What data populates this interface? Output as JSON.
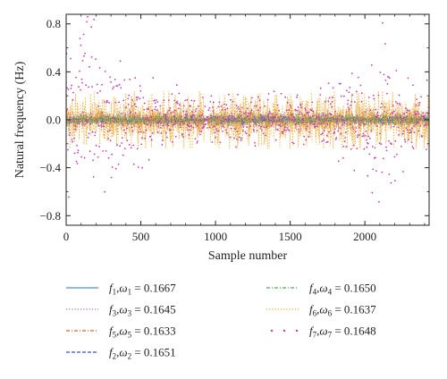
{
  "chart_data": {
    "type": "scatter",
    "title": "",
    "xlabel": "Sample number",
    "ylabel": "Natural frequency (Hz)",
    "xlim": [
      0,
      2430
    ],
    "ylim": [
      -0.88,
      0.88
    ],
    "xticks": [
      0,
      500,
      1000,
      1500,
      2000
    ],
    "yticks": [
      -0.8,
      -0.4,
      0.0,
      0.4,
      0.8
    ],
    "xtick_labels": [
      "0",
      "500",
      "1000",
      "1500",
      "2000"
    ],
    "ytick_labels": [
      "−0.8",
      "−0.4",
      "0.0",
      "0.4",
      "0.8"
    ],
    "grid": false,
    "legend_placement": "below",
    "n_samples": 2430,
    "series": [
      {
        "name": "f1",
        "omega_name": "ω1",
        "omega_value": "0.1667",
        "color": "#4a90d9",
        "style": "solid",
        "amplitude_max": 0.03
      },
      {
        "name": "f3",
        "omega_name": "ω3",
        "omega_value": "0.1645",
        "color": "#9b6fc0",
        "style": "dotted",
        "amplitude_max": 0.06
      },
      {
        "name": "f5",
        "omega_name": "ω5",
        "omega_value": "0.1633",
        "color": "#e0602a",
        "style": "dashdot",
        "amplitude_max": 0.08
      },
      {
        "name": "f2",
        "omega_name": "ω2",
        "omega_value": "0.1651",
        "color": "#3355cc",
        "style": "dashed",
        "amplitude_max": 0.04
      },
      {
        "name": "f4",
        "omega_name": "ω4",
        "omega_value": "0.1650",
        "color": "#4caf50",
        "style": "dashdot",
        "amplitude_max": 0.05
      },
      {
        "name": "f6",
        "omega_name": "ω6",
        "omega_value": "0.1637",
        "color": "#f0a830",
        "style": "dotted",
        "amplitude_max": 0.2
      },
      {
        "name": "f7",
        "omega_name": "ω7",
        "omega_value": "0.1648",
        "color": "#c040b0",
        "style": "markers",
        "amplitude_max": 0.85
      }
    ],
    "legend_order": [
      0,
      4,
      1,
      5,
      2,
      6,
      3
    ]
  }
}
